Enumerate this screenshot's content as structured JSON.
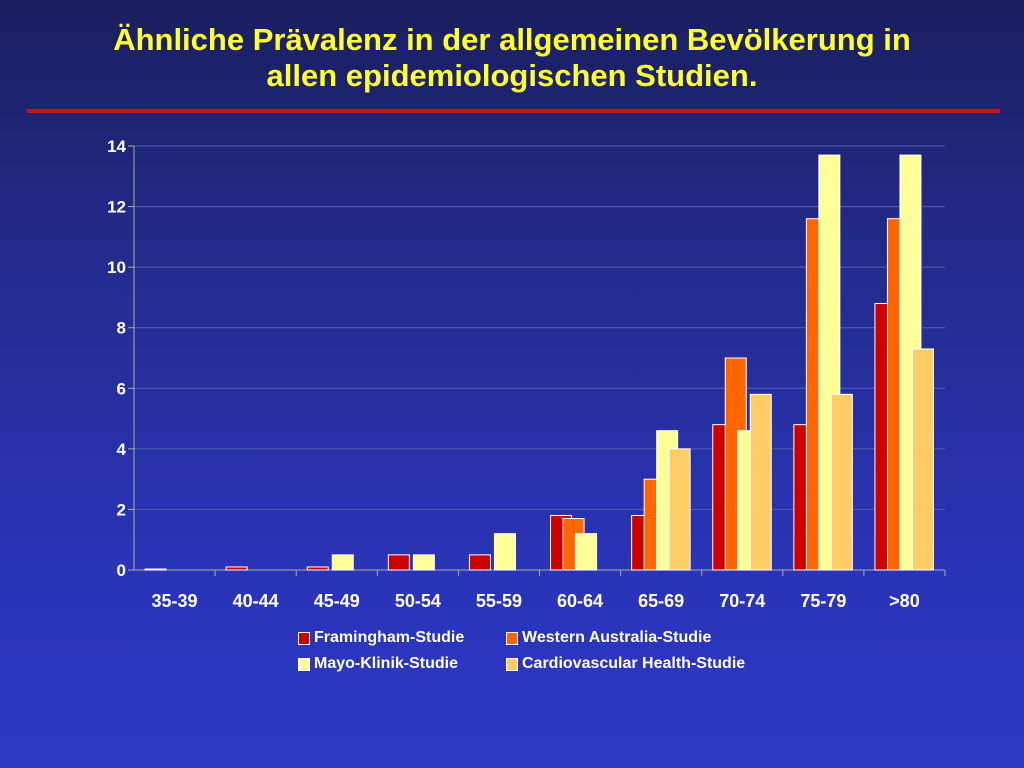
{
  "slide": {
    "title_line1": "Ähnliche Prävalenz in der allgemeinen Bevölkerung in",
    "title_line2": "allen epidemiologischen Studien."
  },
  "colors": {
    "title": "#ffff33",
    "rule": "#cc1111",
    "text": "#ffffff"
  },
  "chart_data": {
    "type": "bar",
    "title": "",
    "xlabel": "",
    "ylabel": "",
    "ylim": [
      0,
      14
    ],
    "yticks": [
      0,
      2,
      4,
      6,
      8,
      10,
      12,
      14
    ],
    "grid": true,
    "legend_position": "bottom",
    "categories": [
      "35-39",
      "40-44",
      "45-49",
      "50-54",
      "55-59",
      "60-64",
      "65-69",
      "70-74",
      "75-79",
      ">80"
    ],
    "series": [
      {
        "name": "Framingham-Studie",
        "color": "#cc0000",
        "values": [
          0,
          0.1,
          0.1,
          0.5,
          0.5,
          1.8,
          1.8,
          4.8,
          4.8,
          8.8
        ]
      },
      {
        "name": "Western Australia-Studie",
        "color": "#ff6600",
        "values": [
          null,
          null,
          null,
          null,
          null,
          1.7,
          3.0,
          7.0,
          11.6,
          11.6
        ]
      },
      {
        "name": "Mayo-Klinik-Studie",
        "color": "#ffff99",
        "values": [
          null,
          null,
          0.5,
          0.5,
          1.2,
          1.2,
          4.6,
          4.6,
          13.7,
          13.7
        ]
      },
      {
        "name": "Cardiovascular Health-Studie",
        "color": "#ffcc66",
        "values": [
          null,
          null,
          null,
          null,
          null,
          null,
          4.0,
          5.8,
          5.8,
          7.3
        ]
      }
    ]
  }
}
